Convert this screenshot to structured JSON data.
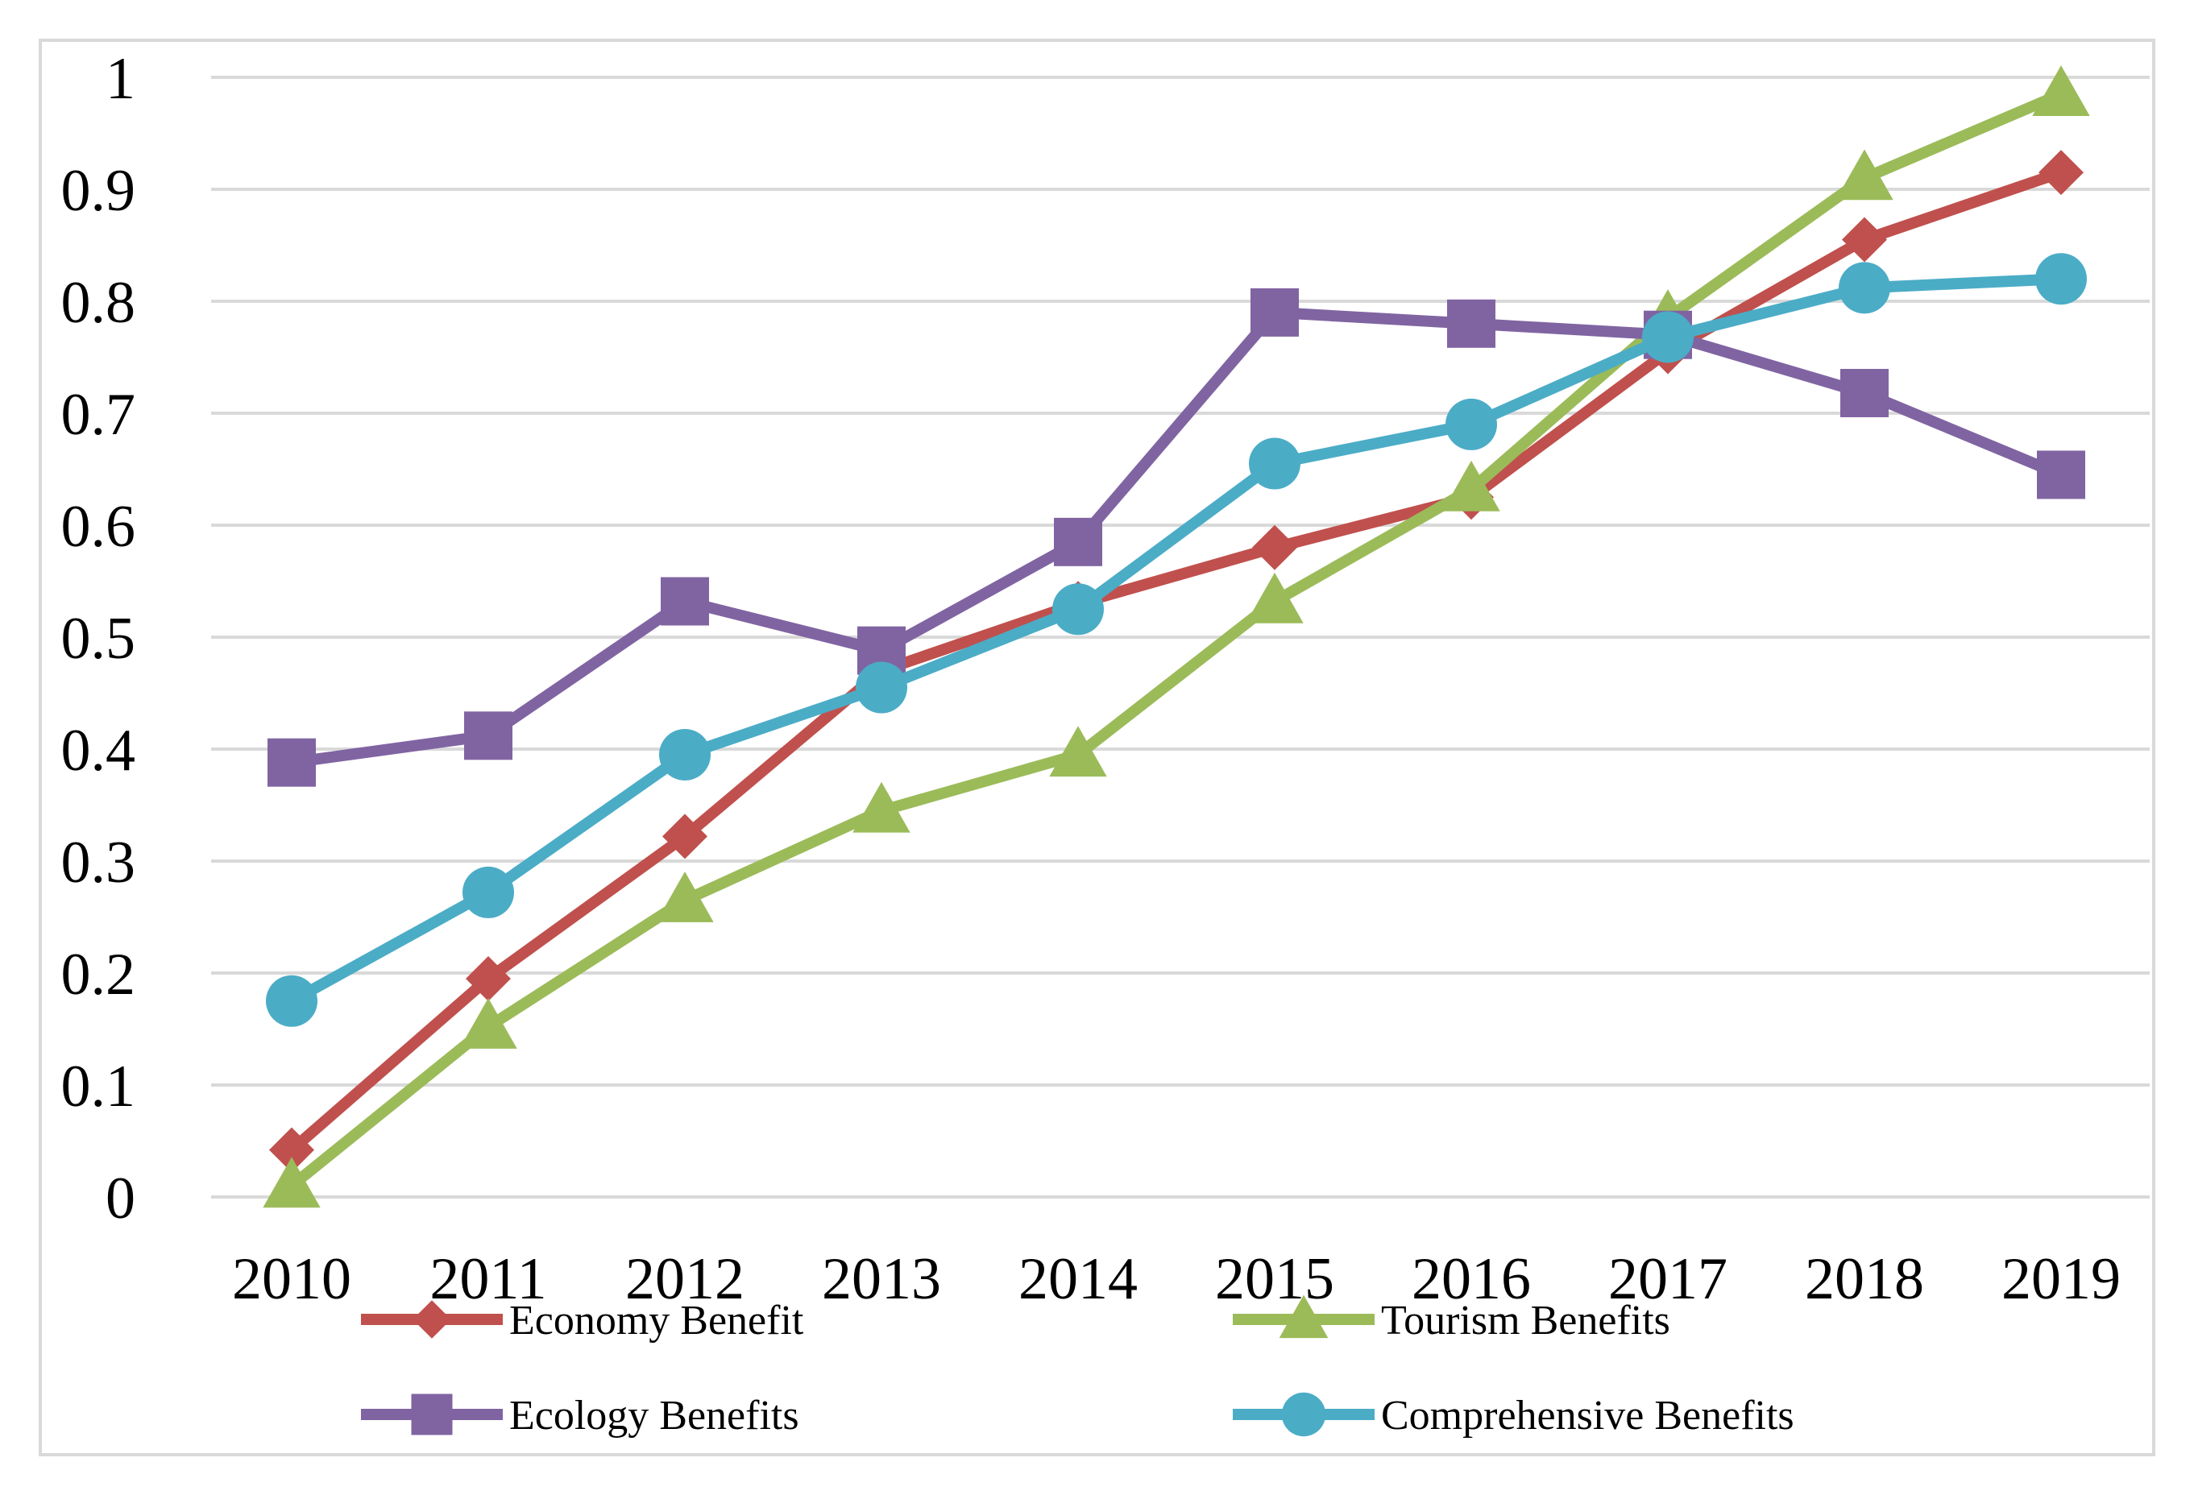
{
  "chart_data": {
    "type": "line",
    "title": "",
    "xlabel": "",
    "ylabel": "",
    "x": [
      "2010",
      "2011",
      "2012",
      "2013",
      "2014",
      "2015",
      "2016",
      "2017",
      "2018",
      "2019"
    ],
    "ylim": [
      0,
      1
    ],
    "yticks": [
      "0",
      "0.1",
      "0.2",
      "0.3",
      "0.4",
      "0.5",
      "0.6",
      "0.7",
      "0.8",
      "0.9",
      "1"
    ],
    "grid": "horizontal",
    "legend_position": "bottom",
    "series": [
      {
        "name": "Economy Benefit",
        "color": "#c0504d",
        "marker": "diamond",
        "values": [
          0.042,
          0.195,
          0.322,
          0.47,
          0.53,
          0.58,
          0.625,
          0.755,
          0.855,
          0.915
        ]
      },
      {
        "name": "Tourism Benefits",
        "color": "#9bbb59",
        "marker": "triangle",
        "values": [
          0.01,
          0.152,
          0.265,
          0.345,
          0.395,
          0.532,
          0.632,
          0.785,
          0.91,
          0.985
        ]
      },
      {
        "name": "Ecology Benefits",
        "color": "#8064a2",
        "marker": "square",
        "values": [
          0.388,
          0.412,
          0.532,
          0.488,
          0.585,
          0.79,
          0.78,
          0.77,
          0.718,
          0.645
        ]
      },
      {
        "name": "Comprehensive Benefits",
        "color": "#4bacc6",
        "marker": "circle",
        "values": [
          0.175,
          0.272,
          0.395,
          0.455,
          0.525,
          0.655,
          0.69,
          0.768,
          0.812,
          0.82
        ]
      }
    ]
  }
}
